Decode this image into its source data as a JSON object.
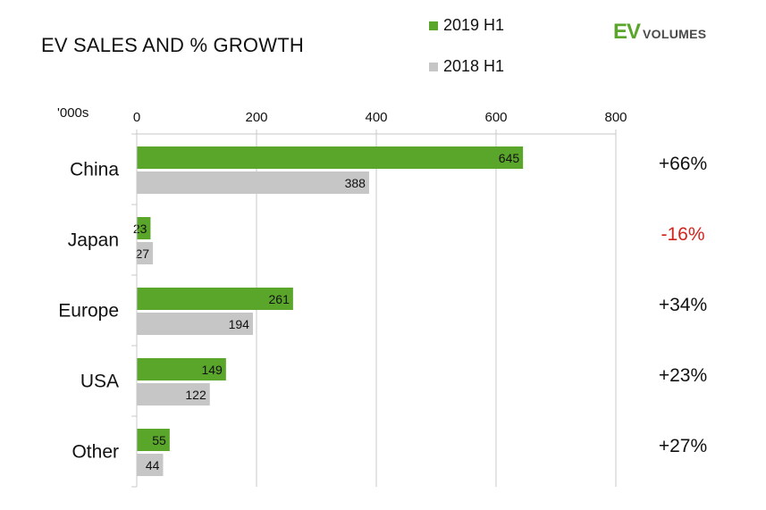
{
  "title": "EV SALES AND % GROWTH",
  "units_label": "'000s",
  "logo": {
    "ev": "EV",
    "volumes": "VOLUMES"
  },
  "colors": {
    "series_2019": "#5aa62b",
    "series_2018": "#c6c6c6",
    "negative": "#d0241c",
    "grid": "#c8c8c8",
    "text": "#111111"
  },
  "legend": [
    {
      "label": "2019 H1",
      "color": "#5aa62b"
    },
    {
      "label": "2018 H1",
      "color": "#c6c6c6"
    }
  ],
  "chart_data": {
    "type": "bar",
    "orientation": "horizontal",
    "categories": [
      "China",
      "Japan",
      "Europe",
      "USA",
      "Other"
    ],
    "series": [
      {
        "name": "2019 H1",
        "values": [
          645,
          23,
          261,
          149,
          55
        ]
      },
      {
        "name": "2018 H1",
        "values": [
          388,
          27,
          194,
          122,
          44
        ]
      }
    ],
    "growth": [
      "+66%",
      "-16%",
      "+34%",
      "+23%",
      "+27%"
    ],
    "xlim": [
      0,
      800
    ],
    "xticks": [
      0,
      200,
      400,
      600,
      800
    ],
    "xlabel": "'000s",
    "grid": true,
    "legend_position": "top"
  }
}
